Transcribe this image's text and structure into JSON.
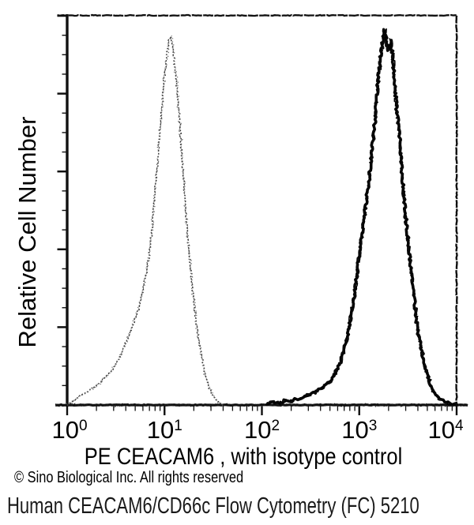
{
  "window": {
    "background": "#ffffff"
  },
  "labels": {
    "y_axis": "Relative Cell Number",
    "x_axis": "PE CEACAM6 , with isotype control",
    "copyright": "© Sino Biological Inc. All rights reserved",
    "caption": "Human CEACAM6/CD66c Flow Cytometry (FC) 5210"
  },
  "colors": {
    "background": "#ffffff",
    "frame": "#101010",
    "axis_text": "#000000",
    "caption_text": "#1a1a1a",
    "solid_curve": "#0b0b0b",
    "solid_curve_overlay": "#000000",
    "dotted_curve_dark": "#2f2f2f",
    "dotted_curve_mid": "#474747",
    "dotted_curve_light": "#636363"
  },
  "chart_data": {
    "type": "line",
    "subtype": "flow-cytometry-histogram-overlay",
    "title": "",
    "xlabel": "PE CEACAM6 , with isotype control",
    "ylabel": "Relative Cell Number",
    "x_scale": "log10",
    "x_range": [
      1,
      10000
    ],
    "ylim": [
      0,
      1
    ],
    "grid": "off",
    "legend": "none",
    "x_ticks": [
      {
        "value": 1,
        "base": "10",
        "exp": "0"
      },
      {
        "value": 10,
        "base": "10",
        "exp": "1"
      },
      {
        "value": 100,
        "base": "10",
        "exp": "2"
      },
      {
        "value": 1000,
        "base": "10",
        "exp": "3"
      },
      {
        "value": 10000,
        "base": "10",
        "exp": "4"
      }
    ],
    "y_axis_ticks": {
      "major_divisions": 5,
      "minor_per_major": 4,
      "numeric_labels": false
    },
    "series": [
      {
        "name": "isotype control",
        "style": "dotted",
        "peak_x": 11.6,
        "peak_height": 0.95,
        "points": [
          [
            1.0,
            0
          ],
          [
            1.12,
            0.008
          ],
          [
            1.3,
            0.02
          ],
          [
            1.6,
            0.034
          ],
          [
            2.0,
            0.05
          ],
          [
            2.4,
            0.068
          ],
          [
            2.9,
            0.09
          ],
          [
            3.4,
            0.118
          ],
          [
            3.9,
            0.152
          ],
          [
            4.4,
            0.186
          ],
          [
            4.9,
            0.216
          ],
          [
            5.4,
            0.246
          ],
          [
            5.9,
            0.286
          ],
          [
            6.4,
            0.33
          ],
          [
            6.9,
            0.378
          ],
          [
            7.3,
            0.432
          ],
          [
            7.7,
            0.5
          ],
          [
            8.1,
            0.566
          ],
          [
            8.6,
            0.64
          ],
          [
            9.1,
            0.72
          ],
          [
            9.6,
            0.79
          ],
          [
            10.1,
            0.856
          ],
          [
            10.6,
            0.9
          ],
          [
            11.1,
            0.936
          ],
          [
            11.6,
            0.949
          ],
          [
            12.2,
            0.92
          ],
          [
            12.9,
            0.866
          ],
          [
            13.6,
            0.8
          ],
          [
            14.4,
            0.72
          ],
          [
            15.2,
            0.63
          ],
          [
            16.1,
            0.545
          ],
          [
            17.0,
            0.46
          ],
          [
            18.0,
            0.386
          ],
          [
            19.1,
            0.316
          ],
          [
            20.3,
            0.25
          ],
          [
            21.6,
            0.196
          ],
          [
            23.0,
            0.15
          ],
          [
            24.6,
            0.11
          ],
          [
            26.4,
            0.076
          ],
          [
            28.5,
            0.047
          ],
          [
            31.0,
            0.026
          ],
          [
            34.0,
            0.012
          ],
          [
            37.0,
            0.005
          ],
          [
            40.0,
            0.0
          ]
        ]
      },
      {
        "name": "PE CEACAM6",
        "style": "solid",
        "peak_x": 1824,
        "peak_height": 0.96,
        "points": [
          [
            110,
            0.0
          ],
          [
            130,
            0.007
          ],
          [
            150,
            0.004
          ],
          [
            170,
            0.011
          ],
          [
            195,
            0.009
          ],
          [
            220,
            0.014
          ],
          [
            250,
            0.018
          ],
          [
            272,
            0.022
          ],
          [
            310,
            0.028
          ],
          [
            360,
            0.034
          ],
          [
            405,
            0.044
          ],
          [
            450,
            0.052
          ],
          [
            500,
            0.062
          ],
          [
            543,
            0.072
          ],
          [
            600,
            0.095
          ],
          [
            654,
            0.115
          ],
          [
            710,
            0.15
          ],
          [
            759,
            0.18
          ],
          [
            820,
            0.23
          ],
          [
            881,
            0.275
          ],
          [
            940,
            0.33
          ],
          [
            1004,
            0.39
          ],
          [
            1070,
            0.44
          ],
          [
            1143,
            0.495
          ],
          [
            1210,
            0.545
          ],
          [
            1279,
            0.595
          ],
          [
            1350,
            0.655
          ],
          [
            1432,
            0.715
          ],
          [
            1500,
            0.78
          ],
          [
            1571,
            0.84
          ],
          [
            1650,
            0.89
          ],
          [
            1726,
            0.93
          ],
          [
            1824,
            0.964
          ],
          [
            1915,
            0.93
          ],
          [
            2004,
            0.912
          ],
          [
            2100,
            0.938
          ],
          [
            2200,
            0.9
          ],
          [
            2327,
            0.82
          ],
          [
            2440,
            0.75
          ],
          [
            2555,
            0.7
          ],
          [
            2680,
            0.64
          ],
          [
            2805,
            0.575
          ],
          [
            2960,
            0.5
          ],
          [
            3139,
            0.432
          ],
          [
            3320,
            0.37
          ],
          [
            3511,
            0.31
          ],
          [
            3750,
            0.25
          ],
          [
            4000,
            0.19
          ],
          [
            4300,
            0.15
          ],
          [
            4645,
            0.108
          ],
          [
            5050,
            0.075
          ],
          [
            5495,
            0.047
          ],
          [
            6000,
            0.03
          ],
          [
            6622,
            0.016
          ],
          [
            7400,
            0.01
          ],
          [
            8283,
            0.006
          ],
          [
            9100,
            0.003
          ],
          [
            10000,
            0.0
          ]
        ]
      }
    ]
  }
}
